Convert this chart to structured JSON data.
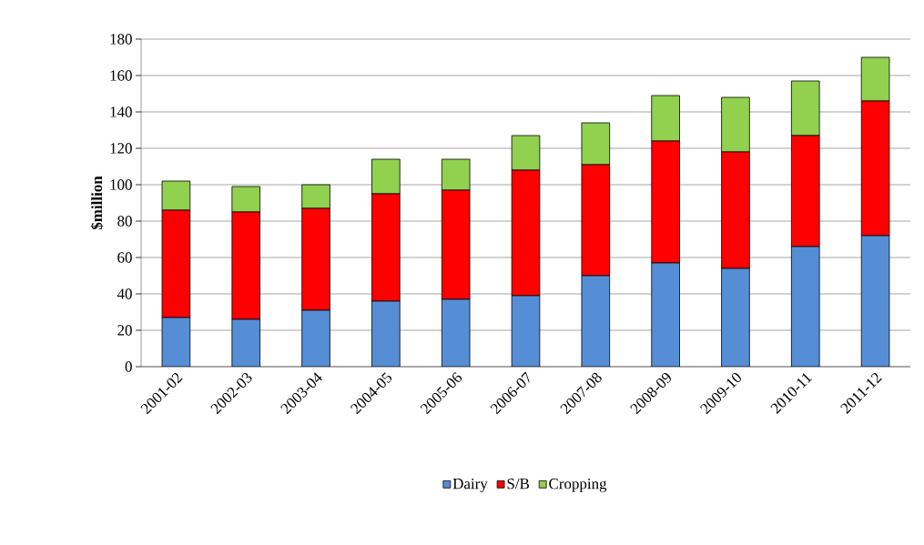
{
  "chart_data": {
    "type": "bar",
    "stacked": true,
    "ylabel": "$million",
    "categories": [
      "2001-02",
      "2002-03",
      "2003-04",
      "2004-05",
      "2005-06",
      "2006-07",
      "2007-08",
      "2008-09",
      "2009-10",
      "2010-11",
      "2011-12"
    ],
    "series": [
      {
        "name": "Dairy",
        "color": "#558ed5",
        "values": [
          27,
          26,
          31,
          36,
          37,
          39,
          50,
          57,
          54,
          66,
          72
        ]
      },
      {
        "name": "S/B",
        "color": "#ff0000",
        "values": [
          59,
          59,
          56,
          59,
          60,
          69,
          61,
          67,
          64,
          61,
          74
        ]
      },
      {
        "name": "Cropping",
        "color": "#92d050",
        "values": [
          16,
          14,
          13,
          19,
          17,
          19,
          23,
          25,
          30,
          30,
          24
        ]
      }
    ],
    "ylim": [
      0,
      180
    ],
    "yticks": [
      0,
      20,
      40,
      60,
      80,
      100,
      120,
      140,
      160,
      180
    ],
    "grid": "y",
    "legend": "bottom"
  }
}
